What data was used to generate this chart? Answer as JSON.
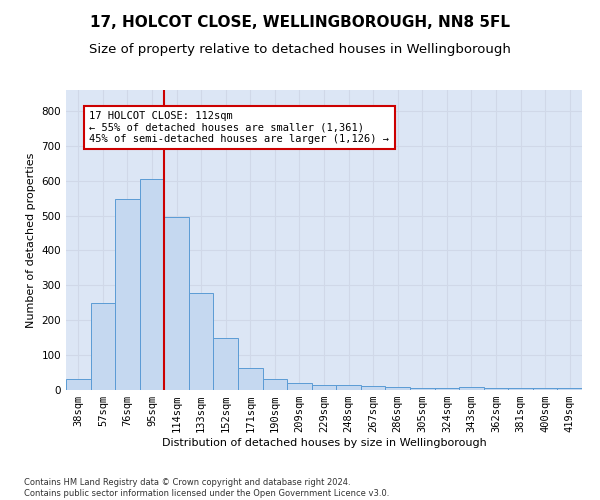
{
  "title": "17, HOLCOT CLOSE, WELLINGBOROUGH, NN8 5FL",
  "subtitle": "Size of property relative to detached houses in Wellingborough",
  "xlabel": "Distribution of detached houses by size in Wellingborough",
  "ylabel": "Number of detached properties",
  "categories": [
    "38sqm",
    "57sqm",
    "76sqm",
    "95sqm",
    "114sqm",
    "133sqm",
    "152sqm",
    "171sqm",
    "190sqm",
    "209sqm",
    "229sqm",
    "248sqm",
    "267sqm",
    "286sqm",
    "305sqm",
    "324sqm",
    "343sqm",
    "362sqm",
    "381sqm",
    "400sqm",
    "419sqm"
  ],
  "values": [
    32,
    248,
    548,
    605,
    495,
    278,
    148,
    62,
    32,
    20,
    15,
    13,
    12,
    8,
    6,
    7,
    8,
    5,
    5,
    7,
    6
  ],
  "bar_color": "#c5d8f0",
  "bar_edge_color": "#5b9bd5",
  "vline_color": "#cc0000",
  "vline_x_index": 4,
  "annotation_line1": "17 HOLCOT CLOSE: 112sqm",
  "annotation_line2": "← 55% of detached houses are smaller (1,361)",
  "annotation_line3": "45% of semi-detached houses are larger (1,126) →",
  "annotation_box_color": "white",
  "annotation_box_edge_color": "#cc0000",
  "ylim": [
    0,
    860
  ],
  "yticks": [
    0,
    100,
    200,
    300,
    400,
    500,
    600,
    700,
    800
  ],
  "grid_color": "#d0d8e8",
  "bg_color": "#dce6f5",
  "title_fontsize": 11,
  "subtitle_fontsize": 9.5,
  "axis_label_fontsize": 8,
  "tick_fontsize": 7.5,
  "footer": "Contains HM Land Registry data © Crown copyright and database right 2024.\nContains public sector information licensed under the Open Government Licence v3.0."
}
